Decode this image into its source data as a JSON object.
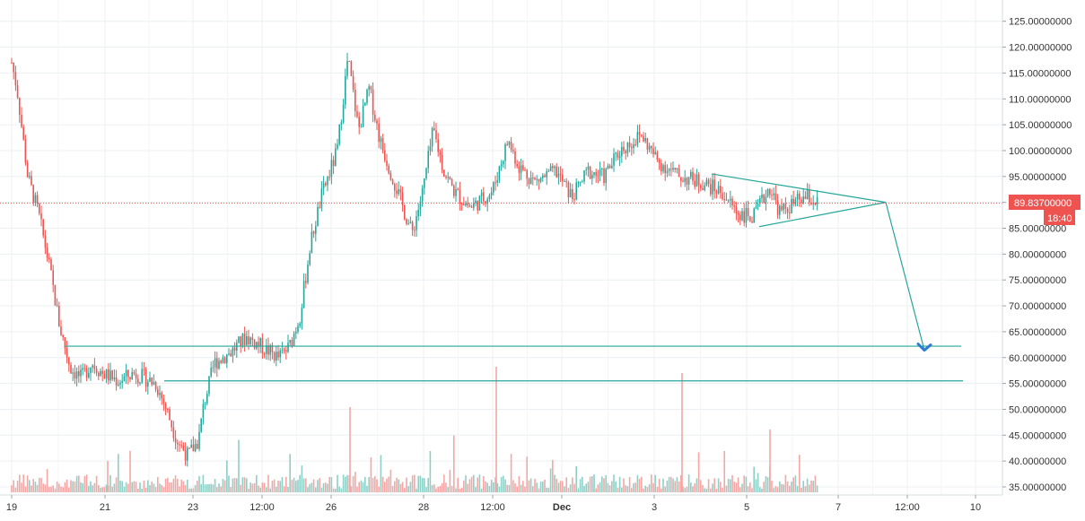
{
  "chart_data": {
    "type": "candlestick",
    "title": "",
    "xlabel": "",
    "ylabel": "",
    "grid": true,
    "ylim": [
      34,
      127
    ],
    "y_ticks": [
      "35.00000000",
      "40.00000000",
      "45.00000000",
      "50.00000000",
      "55.00000000",
      "60.00000000",
      "65.00000000",
      "70.00000000",
      "75.00000000",
      "80.00000000",
      "85.00000000",
      "90.00000000",
      "95.00000000",
      "100.00000000",
      "105.00000000",
      "110.00000000",
      "115.00000000",
      "120.00000000",
      "125.00000000"
    ],
    "x_ticks": [
      "19",
      "21",
      "23",
      "12:00",
      "26",
      "28",
      "12:00",
      "Dec",
      "3",
      "5",
      "7",
      "12:00",
      "10"
    ],
    "price_series": [
      {
        "t": 0,
        "c": 117
      },
      {
        "t": 0.02,
        "c": 112
      },
      {
        "t": 0.06,
        "c": 95
      },
      {
        "t": 0.1,
        "c": 88
      },
      {
        "t": 0.14,
        "c": 78
      },
      {
        "t": 0.18,
        "c": 66
      },
      {
        "t": 0.22,
        "c": 58
      },
      {
        "t": 0.26,
        "c": 56
      },
      {
        "t": 0.3,
        "c": 59
      },
      {
        "t": 0.34,
        "c": 57
      },
      {
        "t": 0.4,
        "c": 55.5
      },
      {
        "t": 0.46,
        "c": 57
      },
      {
        "t": 0.5,
        "c": 56
      },
      {
        "t": 0.54,
        "c": 55
      },
      {
        "t": 0.58,
        "c": 50
      },
      {
        "t": 0.62,
        "c": 44
      },
      {
        "t": 0.66,
        "c": 41
      },
      {
        "t": 0.7,
        "c": 44
      },
      {
        "t": 0.72,
        "c": 51
      },
      {
        "t": 0.76,
        "c": 59
      },
      {
        "t": 0.82,
        "c": 61
      },
      {
        "t": 0.88,
        "c": 64
      },
      {
        "t": 0.94,
        "c": 62
      },
      {
        "t": 1.0,
        "c": 60
      },
      {
        "t": 1.04,
        "c": 62
      },
      {
        "t": 1.08,
        "c": 68
      },
      {
        "t": 1.12,
        "c": 82
      },
      {
        "t": 1.16,
        "c": 91
      },
      {
        "t": 1.22,
        "c": 100
      },
      {
        "t": 1.26,
        "c": 118
      },
      {
        "t": 1.3,
        "c": 104
      },
      {
        "t": 1.34,
        "c": 112
      },
      {
        "t": 1.38,
        "c": 102
      },
      {
        "t": 1.42,
        "c": 96
      },
      {
        "t": 1.46,
        "c": 90
      },
      {
        "t": 1.5,
        "c": 84
      },
      {
        "t": 1.54,
        "c": 92
      },
      {
        "t": 1.58,
        "c": 104
      },
      {
        "t": 1.62,
        "c": 96
      },
      {
        "t": 1.66,
        "c": 92
      },
      {
        "t": 1.72,
        "c": 89
      },
      {
        "t": 1.8,
        "c": 92
      },
      {
        "t": 1.86,
        "c": 102
      },
      {
        "t": 1.9,
        "c": 97
      },
      {
        "t": 1.96,
        "c": 94
      },
      {
        "t": 2.04,
        "c": 96
      },
      {
        "t": 2.1,
        "c": 91
      },
      {
        "t": 2.16,
        "c": 96
      },
      {
        "t": 2.22,
        "c": 95
      },
      {
        "t": 2.28,
        "c": 100
      },
      {
        "t": 2.36,
        "c": 103
      },
      {
        "t": 2.42,
        "c": 98
      },
      {
        "t": 2.5,
        "c": 95
      },
      {
        "t": 2.58,
        "c": 94
      },
      {
        "t": 2.66,
        "c": 92
      },
      {
        "t": 2.72,
        "c": 88
      },
      {
        "t": 2.78,
        "c": 87
      },
      {
        "t": 2.84,
        "c": 93
      },
      {
        "t": 2.88,
        "c": 88
      },
      {
        "t": 2.94,
        "c": 90
      },
      {
        "t": 2.98,
        "c": 91
      },
      {
        "t": 3.02,
        "c": 89.837
      }
    ],
    "annotations": {
      "current_price": "89.83700000",
      "countdown": "18:40",
      "support_levels": [
        62.2,
        55.5
      ],
      "triangle": {
        "upper_start": 95.5,
        "lower_start": 85.3,
        "apex": 90.0
      },
      "projection_target": 63.5
    },
    "colors": {
      "up": "#26a69a",
      "down": "#ef5350",
      "up_volume": "#8fcfc6",
      "down_volume": "#f4a7a5",
      "drawing": "#26a69a",
      "arrow_head": "#2e7dd1",
      "price_line": "#ef5350",
      "grid": "#eceff2",
      "axis_text": "#333333"
    }
  }
}
